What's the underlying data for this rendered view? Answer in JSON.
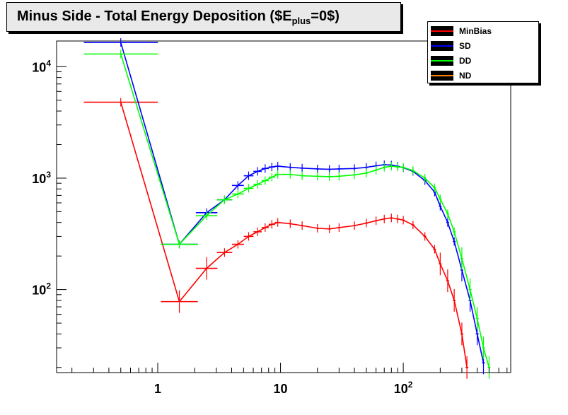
{
  "title": "Minus Side - Total Energy Deposition ($E",
  "title_sub": "plus",
  "title_tail": "=0$)",
  "legend": [
    {
      "name": "MinBias",
      "color": "#ff0000"
    },
    {
      "name": "SD",
      "color": "#0000ff"
    },
    {
      "name": "DD",
      "color": "#00ff00"
    },
    {
      "name": "ND",
      "color": "#ff8000"
    }
  ],
  "chart_data": {
    "type": "line",
    "x_scale": "log",
    "y_scale": "log",
    "xlim": [
      0.15,
      750
    ],
    "ylim": [
      18,
      17000
    ],
    "x_ticks": [
      {
        "value": 1,
        "base": "1",
        "exp": ""
      },
      {
        "value": 10,
        "base": "10",
        "exp": ""
      },
      {
        "value": 100,
        "base": "10",
        "exp": "2"
      }
    ],
    "y_ticks": [
      {
        "value": 100,
        "base": "10",
        "exp": "2"
      },
      {
        "value": 1000,
        "base": "10",
        "exp": "3"
      },
      {
        "value": 10000,
        "base": "10",
        "exp": "4"
      }
    ],
    "grid": false,
    "legend_position": "top-right",
    "series": [
      {
        "name": "MinBias",
        "color": "#ff0000",
        "x": [
          0.5,
          1.5,
          2.5,
          3.5,
          4.5,
          5.5,
          6.5,
          7.5,
          8.5,
          9.5,
          12,
          15,
          20,
          25,
          30,
          40,
          50,
          60,
          70,
          80,
          90,
          100,
          120,
          150,
          180,
          200,
          230,
          260,
          300,
          330
        ],
        "y": [
          4800,
          78,
          155,
          215,
          255,
          300,
          330,
          360,
          385,
          400,
          390,
          375,
          355,
          350,
          360,
          375,
          395,
          415,
          430,
          440,
          430,
          420,
          380,
          300,
          230,
          170,
          120,
          80,
          40,
          20
        ]
      },
      {
        "name": "SD",
        "color": "#0000ff",
        "x": [
          0.5,
          1.5,
          2.5,
          3.5,
          4.5,
          5.5,
          6.5,
          7.5,
          8.5,
          9.5,
          12,
          15,
          20,
          25,
          30,
          40,
          50,
          60,
          70,
          80,
          90,
          100,
          120,
          150,
          180,
          200,
          230,
          260,
          300,
          350,
          400,
          450
        ],
        "y": [
          16500,
          255,
          490,
          640,
          860,
          1050,
          1150,
          1220,
          1260,
          1280,
          1250,
          1230,
          1210,
          1200,
          1210,
          1220,
          1250,
          1290,
          1320,
          1310,
          1280,
          1240,
          1150,
          950,
          750,
          560,
          400,
          270,
          150,
          80,
          40,
          22
        ]
      },
      {
        "name": "DD",
        "color": "#00ff00",
        "x": [
          0.5,
          1.5,
          2.5,
          3.5,
          4.5,
          5.5,
          6.5,
          7.5,
          8.5,
          9.5,
          12,
          15,
          20,
          25,
          30,
          40,
          50,
          60,
          70,
          80,
          90,
          100,
          120,
          150,
          180,
          200,
          230,
          260,
          300,
          350,
          400,
          450,
          500
        ],
        "y": [
          13000,
          255,
          460,
          640,
          720,
          810,
          880,
          950,
          1020,
          1080,
          1080,
          1050,
          1040,
          1030,
          1040,
          1070,
          1110,
          1180,
          1250,
          1280,
          1260,
          1250,
          1170,
          1000,
          820,
          650,
          480,
          330,
          190,
          100,
          55,
          30,
          20
        ]
      },
      {
        "name": "ND",
        "color": "#ff8000",
        "x": [],
        "y": []
      }
    ]
  }
}
